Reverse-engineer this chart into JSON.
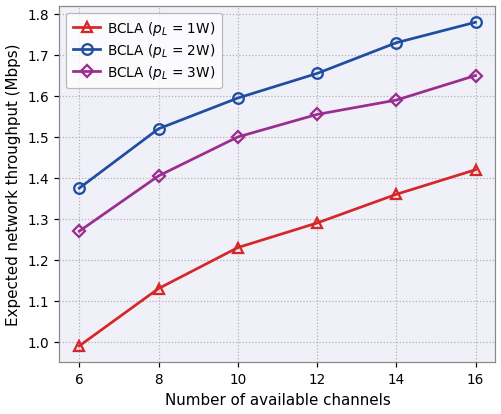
{
  "x": [
    6,
    8,
    10,
    12,
    14,
    16
  ],
  "y_1w": [
    0.99,
    1.13,
    1.23,
    1.29,
    1.36,
    1.42
  ],
  "y_2w": [
    1.375,
    1.52,
    1.595,
    1.655,
    1.73,
    1.78
  ],
  "y_3w": [
    1.27,
    1.405,
    1.5,
    1.555,
    1.59,
    1.65
  ],
  "color_1w": "#d62728",
  "color_2w": "#1f4ea1",
  "color_3w": "#9b2d8e",
  "xlabel": "Number of available channels",
  "ylabel": "Expected network throughput (Mbps)",
  "ylim": [
    0.95,
    1.82
  ],
  "yticks": [
    1.0,
    1.1,
    1.2,
    1.3,
    1.4,
    1.5,
    1.6,
    1.7,
    1.8
  ],
  "xticks": [
    6,
    8,
    10,
    12,
    14,
    16
  ],
  "grid_color": "#b0b0b0",
  "bg_color": "#f0f0f8",
  "fig_bg": "#ffffff"
}
